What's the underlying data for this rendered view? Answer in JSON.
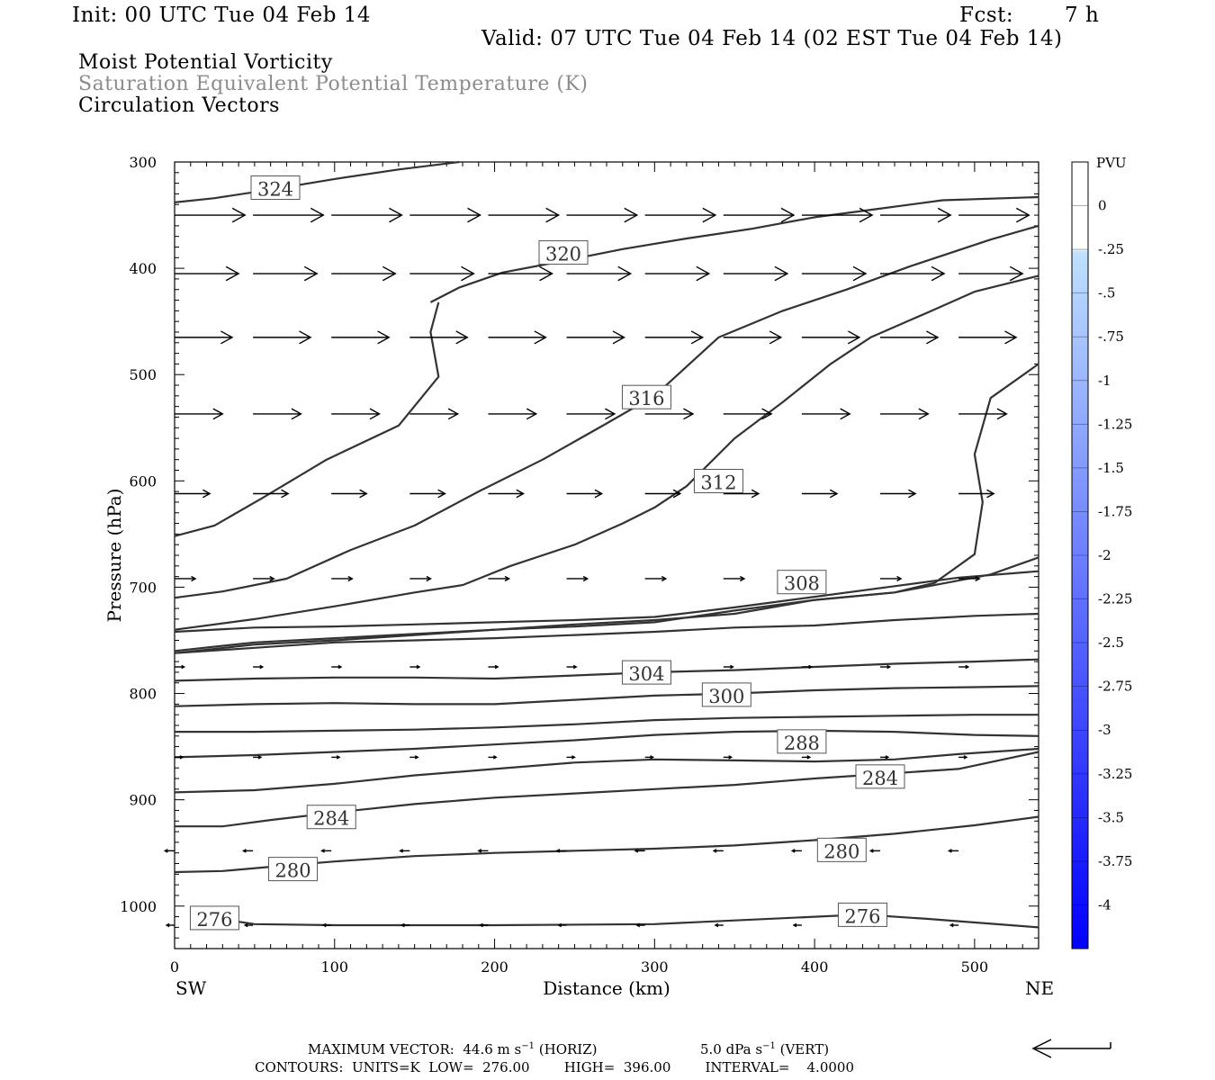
{
  "header": {
    "init": "Init: 00 UTC Tue 04 Feb 14",
    "fcst_label": "Fcst:",
    "fcst_value": "7 h",
    "valid": "Valid: 07 UTC Tue 04 Feb 14 (02 EST Tue 04 Feb 14)"
  },
  "titles": {
    "line1": "Moist Potential Vorticity",
    "line2": "Saturation Equivalent Potential Temperature (K)",
    "line3": "Circulation Vectors"
  },
  "colors": {
    "title2": "#8c8c8c",
    "contour": "#333333",
    "colorbar_top": "#ffffff",
    "colorbar_light": "#bfe0ff",
    "colorbar_bottom": "#0000ff"
  },
  "chart_data": {
    "type": "cross-section",
    "xlabel": "Distance (km)",
    "ylabel": "Pressure (hPa)",
    "xlim": [
      0,
      540
    ],
    "ylim": [
      1040,
      300
    ],
    "xticks": [
      0,
      100,
      200,
      300,
      400,
      500
    ],
    "yticks": [
      300,
      400,
      500,
      600,
      700,
      800,
      900,
      1000
    ],
    "x_left_label": "SW",
    "x_right_label": "NE",
    "colorbar": {
      "unit": "PVU",
      "labels": [
        "0",
        "-.25",
        "-.5",
        "-.75",
        "-1",
        "-1.25",
        "-1.5",
        "-1.75",
        "-2",
        "-2.25",
        "-2.5",
        "-2.75",
        "-3",
        "-3.25",
        "-3.5",
        "-3.75",
        "-4"
      ]
    },
    "contours": [
      {
        "points": [
          [
            0,
            338
          ],
          [
            25,
            334
          ],
          [
            60,
            326
          ],
          [
            100,
            316
          ],
          [
            140,
            307
          ],
          [
            178,
            300
          ]
        ]
      },
      {
        "points": [
          [
            160,
            432
          ],
          [
            178,
            418
          ],
          [
            205,
            404
          ],
          [
            240,
            394
          ],
          [
            280,
            382
          ],
          [
            320,
            372
          ],
          [
            360,
            363
          ],
          [
            400,
            352
          ],
          [
            440,
            344
          ],
          [
            480,
            336
          ],
          [
            540,
            333
          ]
        ]
      },
      {
        "points": [
          [
            0,
            652
          ],
          [
            25,
            642
          ],
          [
            55,
            616
          ],
          [
            95,
            580
          ],
          [
            140,
            548
          ],
          [
            165,
            502
          ],
          [
            160,
            460
          ],
          [
            165,
            432
          ]
        ]
      },
      {
        "points": [
          [
            0,
            710
          ],
          [
            30,
            704
          ],
          [
            70,
            692
          ],
          [
            110,
            665
          ],
          [
            150,
            642
          ],
          [
            190,
            610
          ],
          [
            230,
            580
          ],
          [
            270,
            546
          ],
          [
            300,
            520
          ],
          [
            340,
            465
          ],
          [
            380,
            440
          ],
          [
            420,
            420
          ],
          [
            460,
            398
          ],
          [
            510,
            373
          ],
          [
            540,
            360
          ]
        ]
      },
      {
        "points": [
          [
            0,
            740
          ],
          [
            50,
            730
          ],
          [
            100,
            718
          ],
          [
            150,
            705
          ],
          [
            180,
            698
          ],
          [
            210,
            680
          ],
          [
            250,
            660
          ],
          [
            280,
            640
          ],
          [
            300,
            625
          ],
          [
            320,
            605
          ],
          [
            350,
            560
          ],
          [
            380,
            526
          ],
          [
            410,
            490
          ],
          [
            435,
            465
          ],
          [
            470,
            442
          ],
          [
            500,
            422
          ],
          [
            540,
            407
          ]
        ]
      },
      {
        "points": [
          [
            0,
            760
          ],
          [
            50,
            752
          ],
          [
            100,
            748
          ],
          [
            150,
            744
          ],
          [
            200,
            740
          ],
          [
            250,
            735
          ],
          [
            300,
            731
          ],
          [
            350,
            725
          ],
          [
            400,
            712
          ],
          [
            450,
            705
          ],
          [
            475,
            696
          ],
          [
            500,
            669
          ],
          [
            505,
            620
          ],
          [
            500,
            575
          ],
          [
            510,
            522
          ],
          [
            540,
            490
          ]
        ]
      },
      {
        "points": [
          [
            0,
            762
          ],
          [
            50,
            754
          ],
          [
            100,
            750
          ],
          [
            150,
            745
          ],
          [
            200,
            740
          ],
          [
            250,
            737
          ],
          [
            300,
            733
          ],
          [
            350,
            722
          ],
          [
            400,
            712
          ],
          [
            450,
            705
          ],
          [
            475,
            698
          ],
          [
            510,
            688
          ],
          [
            540,
            672
          ]
        ]
      },
      {
        "points": [
          [
            0,
            742
          ],
          [
            50,
            738
          ],
          [
            100,
            737
          ],
          [
            150,
            735
          ],
          [
            200,
            733
          ],
          [
            250,
            731
          ],
          [
            300,
            728
          ],
          [
            350,
            719
          ],
          [
            400,
            709
          ],
          [
            450,
            699
          ],
          [
            490,
            691
          ],
          [
            540,
            685
          ]
        ]
      },
      {
        "points": [
          [
            0,
            762
          ],
          [
            50,
            757
          ],
          [
            100,
            752
          ],
          [
            150,
            750
          ],
          [
            200,
            748
          ],
          [
            250,
            745
          ],
          [
            300,
            742
          ],
          [
            350,
            738
          ],
          [
            400,
            736
          ],
          [
            450,
            731
          ],
          [
            500,
            727
          ],
          [
            540,
            725
          ]
        ]
      },
      {
        "points": [
          [
            0,
            788
          ],
          [
            50,
            786
          ],
          [
            100,
            785
          ],
          [
            150,
            785
          ],
          [
            200,
            786
          ],
          [
            250,
            783
          ],
          [
            300,
            780
          ],
          [
            350,
            778
          ],
          [
            400,
            775
          ],
          [
            450,
            772
          ],
          [
            500,
            770
          ],
          [
            540,
            768
          ]
        ]
      },
      {
        "points": [
          [
            0,
            812
          ],
          [
            50,
            810
          ],
          [
            100,
            809
          ],
          [
            150,
            810
          ],
          [
            200,
            810
          ],
          [
            250,
            806
          ],
          [
            300,
            802
          ],
          [
            350,
            800
          ],
          [
            400,
            797
          ],
          [
            450,
            795
          ],
          [
            500,
            794
          ],
          [
            540,
            793
          ]
        ]
      },
      {
        "points": [
          [
            0,
            836
          ],
          [
            50,
            836
          ],
          [
            100,
            835
          ],
          [
            150,
            834
          ],
          [
            200,
            832
          ],
          [
            250,
            829
          ],
          [
            300,
            825
          ],
          [
            350,
            823
          ],
          [
            400,
            822
          ],
          [
            450,
            821
          ],
          [
            500,
            820
          ],
          [
            540,
            820
          ]
        ]
      },
      {
        "points": [
          [
            0,
            860
          ],
          [
            50,
            858
          ],
          [
            100,
            855
          ],
          [
            150,
            852
          ],
          [
            200,
            848
          ],
          [
            250,
            844
          ],
          [
            300,
            839
          ],
          [
            350,
            836
          ],
          [
            400,
            835
          ],
          [
            450,
            836
          ],
          [
            500,
            839
          ],
          [
            540,
            840
          ]
        ]
      },
      {
        "points": [
          [
            0,
            893
          ],
          [
            50,
            891
          ],
          [
            100,
            885
          ],
          [
            150,
            877
          ],
          [
            200,
            871
          ],
          [
            250,
            865
          ],
          [
            300,
            862
          ],
          [
            350,
            863
          ],
          [
            400,
            864
          ],
          [
            450,
            862
          ],
          [
            490,
            857
          ],
          [
            540,
            852
          ]
        ]
      },
      {
        "points": [
          [
            0,
            925
          ],
          [
            30,
            925
          ],
          [
            60,
            919
          ],
          [
            100,
            912
          ],
          [
            150,
            904
          ],
          [
            200,
            898
          ],
          [
            250,
            894
          ],
          [
            300,
            890
          ],
          [
            350,
            886
          ],
          [
            400,
            880
          ],
          [
            450,
            875
          ],
          [
            490,
            871
          ],
          [
            540,
            855
          ]
        ]
      },
      {
        "points": [
          [
            0,
            968
          ],
          [
            30,
            967
          ],
          [
            60,
            963
          ],
          [
            100,
            958
          ],
          [
            150,
            953
          ],
          [
            200,
            950
          ],
          [
            250,
            948
          ],
          [
            300,
            946
          ],
          [
            350,
            943
          ],
          [
            400,
            938
          ],
          [
            450,
            932
          ],
          [
            500,
            924
          ],
          [
            540,
            916
          ]
        ]
      },
      {
        "points": [
          [
            10,
            1008
          ],
          [
            50,
            1017
          ],
          [
            100,
            1018
          ],
          [
            200,
            1018
          ],
          [
            300,
            1017
          ],
          [
            400,
            1010
          ],
          [
            430,
            1008
          ],
          [
            470,
            1012
          ],
          [
            540,
            1020
          ]
        ]
      }
    ],
    "contour_labels": [
      {
        "text": "324",
        "x": 63,
        "p": 325
      },
      {
        "text": "320",
        "x": 243,
        "p": 386
      },
      {
        "text": "316",
        "x": 295,
        "p": 522
      },
      {
        "text": "312",
        "x": 340,
        "p": 601
      },
      {
        "text": "308",
        "x": 392,
        "p": 696
      },
      {
        "text": "304",
        "x": 295,
        "p": 781
      },
      {
        "text": "300",
        "x": 345,
        "p": 802
      },
      {
        "text": "288",
        "x": 392,
        "p": 846
      },
      {
        "text": "284",
        "x": 441,
        "p": 879
      },
      {
        "text": "284",
        "x": 98,
        "p": 917
      },
      {
        "text": "280",
        "x": 417,
        "p": 948
      },
      {
        "text": "280",
        "x": 74,
        "p": 966
      },
      {
        "text": "276",
        "x": 25,
        "p": 1012
      },
      {
        "text": "276",
        "x": 430,
        "p": 1009
      }
    ],
    "vectors": [
      {
        "p": 350,
        "x0": 0,
        "dx": 49,
        "len": 44,
        "n": 11
      },
      {
        "p": 405,
        "x0": 0,
        "dx": 49,
        "len": 40,
        "n": 11
      },
      {
        "p": 465,
        "x0": 0,
        "dx": 49,
        "len": 36,
        "n": 11
      },
      {
        "p": 537,
        "x0": 0,
        "dx": 49,
        "len": 30,
        "n": 11
      },
      {
        "p": 612,
        "x0": 0,
        "dx": 49,
        "len": 22,
        "n": 11
      },
      {
        "p": 692,
        "x0": 0,
        "dx": 49,
        "len": 13,
        "n": 11
      },
      {
        "p": 775,
        "x0": 0,
        "dx": 49,
        "len": 6,
        "n": 11
      },
      {
        "p": 860,
        "x0": 0,
        "dx": 49,
        "len": 5,
        "n": 11
      },
      {
        "p": 948,
        "x0": 0,
        "dx": 49,
        "len": -6,
        "n": 11
      },
      {
        "p": 1018,
        "x0": 0,
        "dx": 49,
        "len": -5,
        "n": 11
      }
    ]
  },
  "footer": {
    "max_vector_label": "MAXIMUM VECTOR:",
    "horiz_value": "44.6 m s",
    "exp": "−1",
    "horiz_tag": "(HORIZ)",
    "vert_value": "5.0 dPa s",
    "vert_tag": "(VERT)",
    "contours_line": "CONTOURS:  UNITS=K  LOW=  276.00        HIGH=  396.00        INTERVAL=    4.0000"
  }
}
